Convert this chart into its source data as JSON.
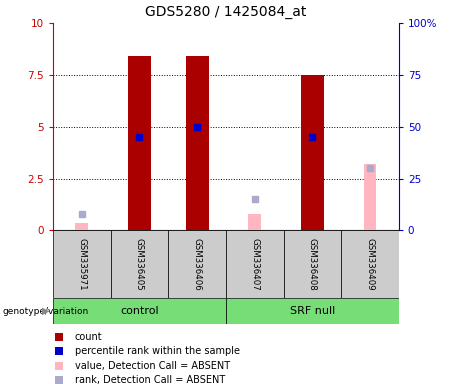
{
  "title": "GDS5280 / 1425084_at",
  "samples": [
    "GSM335971",
    "GSM336405",
    "GSM336406",
    "GSM336407",
    "GSM336408",
    "GSM336409"
  ],
  "count_values": [
    0.0,
    8.4,
    8.4,
    0.0,
    7.5,
    0.0
  ],
  "percentile_rank": [
    null,
    45.0,
    50.0,
    null,
    45.0,
    null
  ],
  "absent_value": [
    0.35,
    null,
    null,
    0.8,
    null,
    3.2
  ],
  "absent_rank": [
    8.0,
    null,
    null,
    15.0,
    null,
    30.0
  ],
  "ylim_left": [
    0,
    10
  ],
  "ylim_right": [
    0,
    100
  ],
  "yticks_left": [
    0,
    2.5,
    5,
    7.5,
    10
  ],
  "yticks_right": [
    0,
    25,
    50,
    75,
    100
  ],
  "ytick_labels_left": [
    "0",
    "2.5",
    "5",
    "7.5",
    "10"
  ],
  "ytick_labels_right": [
    "0",
    "25",
    "50",
    "75",
    "100%"
  ],
  "group_row_label": "genotype/variation",
  "bar_color": "#AA0000",
  "bar_width": 0.4,
  "percentile_color": "#0000CC",
  "absent_value_color": "#FFB6C1",
  "absent_rank_color": "#AAAACC",
  "plot_bg_color": "#FFFFFF",
  "sample_box_color": "#CCCCCC",
  "left_axis_color": "#CC0000",
  "right_axis_color": "#0000CC",
  "title_fontsize": 10,
  "tick_fontsize": 7.5,
  "legend_fontsize": 7,
  "group_green": "#77DD77"
}
